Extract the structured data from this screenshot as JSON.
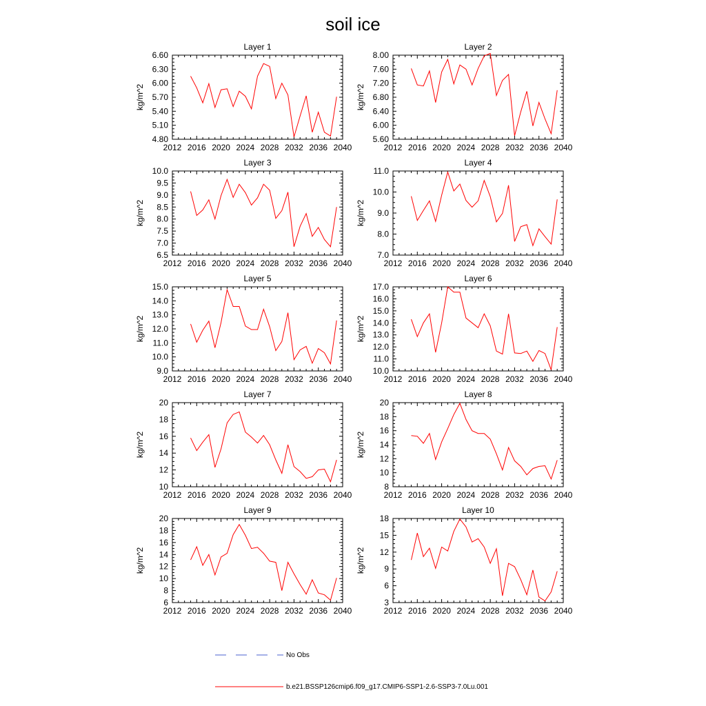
{
  "title": "soil ice",
  "legend": [
    {
      "label": "No Obs",
      "color": "#4a5fcf",
      "dash": "dashed"
    },
    {
      "label": "b.e21.BSSP126cmip6.f09_g17.CMIP6-SSP1-2.6-SSP3-7.0Lu.001",
      "color": "#ff0000",
      "dash": "solid"
    }
  ],
  "chart_data": [
    {
      "type": "line",
      "title": "Layer 1",
      "xlabel": "",
      "ylabel": "kg/m^2",
      "xlim": [
        2012,
        2040
      ],
      "xticks": [
        "2012",
        "2016",
        "2020",
        "2024",
        "2028",
        "2032",
        "2036",
        "2040"
      ],
      "ylim": [
        4.8,
        6.6
      ],
      "yticks": [
        "4.80",
        "5.10",
        "5.40",
        "5.70",
        "6.00",
        "6.30",
        "6.60"
      ],
      "series": [
        {
          "color": "#ff0000",
          "x": [
            2015,
            2016,
            2017,
            2018,
            2019,
            2020,
            2021,
            2022,
            2023,
            2024,
            2025,
            2026,
            2027,
            2028,
            2029,
            2030,
            2031,
            2032,
            2033,
            2034,
            2035,
            2036,
            2037,
            2038,
            2039
          ],
          "y": [
            6.15,
            5.9,
            5.58,
            5.99,
            5.48,
            5.86,
            5.88,
            5.5,
            5.83,
            5.72,
            5.45,
            6.15,
            6.42,
            6.36,
            5.67,
            6.0,
            5.75,
            4.85,
            5.3,
            5.73,
            4.95,
            5.38,
            4.95,
            4.87,
            5.71
          ]
        }
      ]
    },
    {
      "type": "line",
      "title": "Layer 2",
      "xlabel": "",
      "ylabel": "kg/m^2",
      "xlim": [
        2012,
        2040
      ],
      "xticks": [
        "2012",
        "2016",
        "2020",
        "2024",
        "2028",
        "2032",
        "2036",
        "2040"
      ],
      "ylim": [
        5.6,
        8.0
      ],
      "yticks": [
        "5.60",
        "6.00",
        "6.40",
        "6.80",
        "7.20",
        "7.60",
        "8.00"
      ],
      "series": [
        {
          "color": "#ff0000",
          "x": [
            2015,
            2016,
            2017,
            2018,
            2019,
            2020,
            2021,
            2022,
            2023,
            2024,
            2025,
            2026,
            2027,
            2028,
            2029,
            2030,
            2031,
            2032,
            2033,
            2034,
            2035,
            2036,
            2037,
            2038,
            2039
          ],
          "y": [
            7.62,
            7.15,
            7.12,
            7.55,
            6.65,
            7.52,
            7.88,
            7.18,
            7.72,
            7.6,
            7.15,
            7.62,
            7.98,
            8.05,
            6.85,
            7.28,
            7.45,
            5.7,
            6.38,
            6.97,
            5.98,
            6.65,
            6.18,
            5.76,
            7.0
          ]
        }
      ]
    },
    {
      "type": "line",
      "title": "Layer 3",
      "xlabel": "",
      "ylabel": "kg/m^2",
      "xlim": [
        2012,
        2040
      ],
      "xticks": [
        "2012",
        "2016",
        "2020",
        "2024",
        "2028",
        "2032",
        "2036",
        "2040"
      ],
      "ylim": [
        6.5,
        10.0
      ],
      "yticks": [
        "6.5",
        "7.0",
        "7.5",
        "8.0",
        "8.5",
        "9.0",
        "9.5",
        "10.0"
      ],
      "series": [
        {
          "color": "#ff0000",
          "x": [
            2015,
            2016,
            2017,
            2018,
            2019,
            2020,
            2021,
            2022,
            2023,
            2024,
            2025,
            2026,
            2027,
            2028,
            2029,
            2030,
            2031,
            2032,
            2033,
            2034,
            2035,
            2036,
            2037,
            2038,
            2039
          ],
          "y": [
            9.15,
            8.15,
            8.38,
            8.8,
            8.0,
            8.98,
            9.65,
            8.9,
            9.45,
            9.1,
            8.58,
            8.88,
            9.45,
            9.2,
            8.03,
            8.35,
            9.12,
            6.85,
            7.7,
            8.23,
            7.28,
            7.65,
            7.15,
            6.85,
            8.5
          ]
        }
      ]
    },
    {
      "type": "line",
      "title": "Layer 4",
      "xlabel": "",
      "ylabel": "kg/m^2",
      "xlim": [
        2012,
        2040
      ],
      "xticks": [
        "2012",
        "2016",
        "2020",
        "2024",
        "2028",
        "2032",
        "2036",
        "2040"
      ],
      "ylim": [
        7.0,
        11.0
      ],
      "yticks": [
        "7.0",
        "8.0",
        "9.0",
        "10.0",
        "11.0"
      ],
      "series": [
        {
          "color": "#ff0000",
          "x": [
            2015,
            2016,
            2017,
            2018,
            2019,
            2020,
            2021,
            2022,
            2023,
            2024,
            2025,
            2026,
            2027,
            2028,
            2029,
            2030,
            2031,
            2032,
            2033,
            2034,
            2035,
            2036,
            2037,
            2038,
            2039
          ],
          "y": [
            9.8,
            8.65,
            9.12,
            9.58,
            8.6,
            9.85,
            10.95,
            10.05,
            10.38,
            9.6,
            9.28,
            9.58,
            10.55,
            9.78,
            8.58,
            8.98,
            10.32,
            7.65,
            8.35,
            8.45,
            7.45,
            8.25,
            7.88,
            7.52,
            9.65
          ]
        }
      ]
    },
    {
      "type": "line",
      "title": "Layer 5",
      "xlabel": "",
      "ylabel": "kg/m^2",
      "xlim": [
        2012,
        2040
      ],
      "xticks": [
        "2012",
        "2016",
        "2020",
        "2024",
        "2028",
        "2032",
        "2036",
        "2040"
      ],
      "ylim": [
        9.0,
        15.0
      ],
      "yticks": [
        "9.0",
        "10.0",
        "11.0",
        "12.0",
        "13.0",
        "14.0",
        "15.0"
      ],
      "series": [
        {
          "color": "#ff0000",
          "x": [
            2015,
            2016,
            2017,
            2018,
            2019,
            2020,
            2021,
            2022,
            2023,
            2024,
            2025,
            2026,
            2027,
            2028,
            2029,
            2030,
            2031,
            2032,
            2033,
            2034,
            2035,
            2036,
            2037,
            2038,
            2039
          ],
          "y": [
            12.35,
            11.05,
            11.9,
            12.55,
            10.65,
            12.45,
            14.8,
            13.6,
            13.6,
            12.2,
            11.95,
            11.95,
            13.4,
            12.15,
            10.45,
            11.1,
            13.15,
            9.8,
            10.5,
            10.75,
            9.55,
            10.6,
            10.3,
            9.5,
            12.6
          ]
        }
      ]
    },
    {
      "type": "line",
      "title": "Layer 6",
      "xlabel": "",
      "ylabel": "kg/m^2",
      "xlim": [
        2012,
        2040
      ],
      "xticks": [
        "2012",
        "2016",
        "2020",
        "2024",
        "2028",
        "2032",
        "2036",
        "2040"
      ],
      "ylim": [
        10.0,
        17.0
      ],
      "yticks": [
        "10.0",
        "11.0",
        "12.0",
        "13.0",
        "14.0",
        "15.0",
        "16.0",
        "17.0"
      ],
      "series": [
        {
          "color": "#ff0000",
          "x": [
            2015,
            2016,
            2017,
            2018,
            2019,
            2020,
            2021,
            2022,
            2023,
            2024,
            2025,
            2026,
            2027,
            2028,
            2029,
            2030,
            2031,
            2032,
            2033,
            2034,
            2035,
            2036,
            2037,
            2038,
            2039
          ],
          "y": [
            14.3,
            12.85,
            14.0,
            14.75,
            11.55,
            14.0,
            17.0,
            16.55,
            16.55,
            14.4,
            14.0,
            13.6,
            14.75,
            13.75,
            11.65,
            11.4,
            14.75,
            11.5,
            11.45,
            11.65,
            10.8,
            11.7,
            11.45,
            10.1,
            13.65
          ]
        }
      ]
    },
    {
      "type": "line",
      "title": "Layer 7",
      "xlabel": "",
      "ylabel": "kg/m^2",
      "xlim": [
        2012,
        2040
      ],
      "xticks": [
        "2012",
        "2016",
        "2020",
        "2024",
        "2028",
        "2032",
        "2036",
        "2040"
      ],
      "ylim": [
        10,
        20
      ],
      "yticks": [
        "10",
        "12",
        "14",
        "16",
        "18",
        "20"
      ],
      "series": [
        {
          "color": "#ff0000",
          "x": [
            2015,
            2016,
            2017,
            2018,
            2019,
            2020,
            2021,
            2022,
            2023,
            2024,
            2025,
            2026,
            2027,
            2028,
            2029,
            2030,
            2031,
            2032,
            2033,
            2034,
            2035,
            2036,
            2037,
            2038,
            2039
          ],
          "y": [
            15.8,
            14.3,
            15.3,
            16.2,
            12.3,
            14.5,
            17.6,
            18.6,
            18.9,
            16.5,
            15.9,
            15.2,
            16.1,
            15.0,
            13.2,
            11.6,
            15.0,
            12.4,
            11.8,
            11.0,
            11.2,
            12.0,
            12.1,
            10.6,
            13.2
          ]
        }
      ]
    },
    {
      "type": "line",
      "title": "Layer 8",
      "xlabel": "",
      "ylabel": "kg/m^2",
      "xlim": [
        2012,
        2040
      ],
      "xticks": [
        "2012",
        "2016",
        "2020",
        "2024",
        "2028",
        "2032",
        "2036",
        "2040"
      ],
      "ylim": [
        8,
        20
      ],
      "yticks": [
        "8",
        "10",
        "12",
        "14",
        "16",
        "18",
        "20"
      ],
      "series": [
        {
          "color": "#ff0000",
          "x": [
            2015,
            2016,
            2017,
            2018,
            2019,
            2020,
            2021,
            2022,
            2023,
            2024,
            2025,
            2026,
            2027,
            2028,
            2029,
            2030,
            2031,
            2032,
            2033,
            2034,
            2035,
            2036,
            2037,
            2038,
            2039
          ],
          "y": [
            15.3,
            15.2,
            14.2,
            15.6,
            11.9,
            14.4,
            16.3,
            18.3,
            19.9,
            17.6,
            16.0,
            15.6,
            15.6,
            14.8,
            12.7,
            10.4,
            13.6,
            11.7,
            10.9,
            9.7,
            10.6,
            10.9,
            11.0,
            9.1,
            11.8
          ]
        }
      ]
    },
    {
      "type": "line",
      "title": "Layer 9",
      "xlabel": "",
      "ylabel": "kg/m^2",
      "xlim": [
        2012,
        2040
      ],
      "xticks": [
        "2012",
        "2016",
        "2020",
        "2024",
        "2028",
        "2032",
        "2036",
        "2040"
      ],
      "ylim": [
        6,
        20
      ],
      "yticks": [
        "6",
        "8",
        "10",
        "12",
        "14",
        "16",
        "18",
        "20"
      ],
      "series": [
        {
          "color": "#ff0000",
          "x": [
            2015,
            2016,
            2017,
            2018,
            2019,
            2020,
            2021,
            2022,
            2023,
            2024,
            2025,
            2026,
            2027,
            2028,
            2029,
            2030,
            2031,
            2032,
            2033,
            2034,
            2035,
            2036,
            2037,
            2038,
            2039
          ],
          "y": [
            13.1,
            15.3,
            12.2,
            14.0,
            10.6,
            13.6,
            14.2,
            17.3,
            19.0,
            17.2,
            15.0,
            15.2,
            14.2,
            12.9,
            12.7,
            8.0,
            12.7,
            10.8,
            9.0,
            7.4,
            9.8,
            7.6,
            7.3,
            6.4,
            10.1
          ]
        }
      ]
    },
    {
      "type": "line",
      "title": "Layer 10",
      "xlabel": "",
      "ylabel": "kg/m^2",
      "xlim": [
        2012,
        2040
      ],
      "xticks": [
        "2012",
        "2016",
        "2020",
        "2024",
        "2028",
        "2032",
        "2036",
        "2040"
      ],
      "ylim": [
        3,
        18
      ],
      "yticks": [
        "3",
        "6",
        "9",
        "12",
        "15",
        "18"
      ],
      "series": [
        {
          "color": "#ff0000",
          "x": [
            2015,
            2016,
            2017,
            2018,
            2019,
            2020,
            2021,
            2022,
            2023,
            2024,
            2025,
            2026,
            2027,
            2028,
            2029,
            2030,
            2031,
            2032,
            2033,
            2034,
            2035,
            2036,
            2037,
            2038,
            2039
          ],
          "y": [
            10.6,
            15.4,
            11.2,
            12.7,
            9.1,
            12.9,
            12.2,
            15.7,
            17.9,
            16.5,
            13.8,
            14.4,
            12.9,
            10.0,
            12.6,
            4.2,
            10.0,
            9.4,
            7.1,
            4.4,
            8.8,
            4.0,
            3.3,
            4.9,
            8.6
          ]
        }
      ]
    }
  ]
}
